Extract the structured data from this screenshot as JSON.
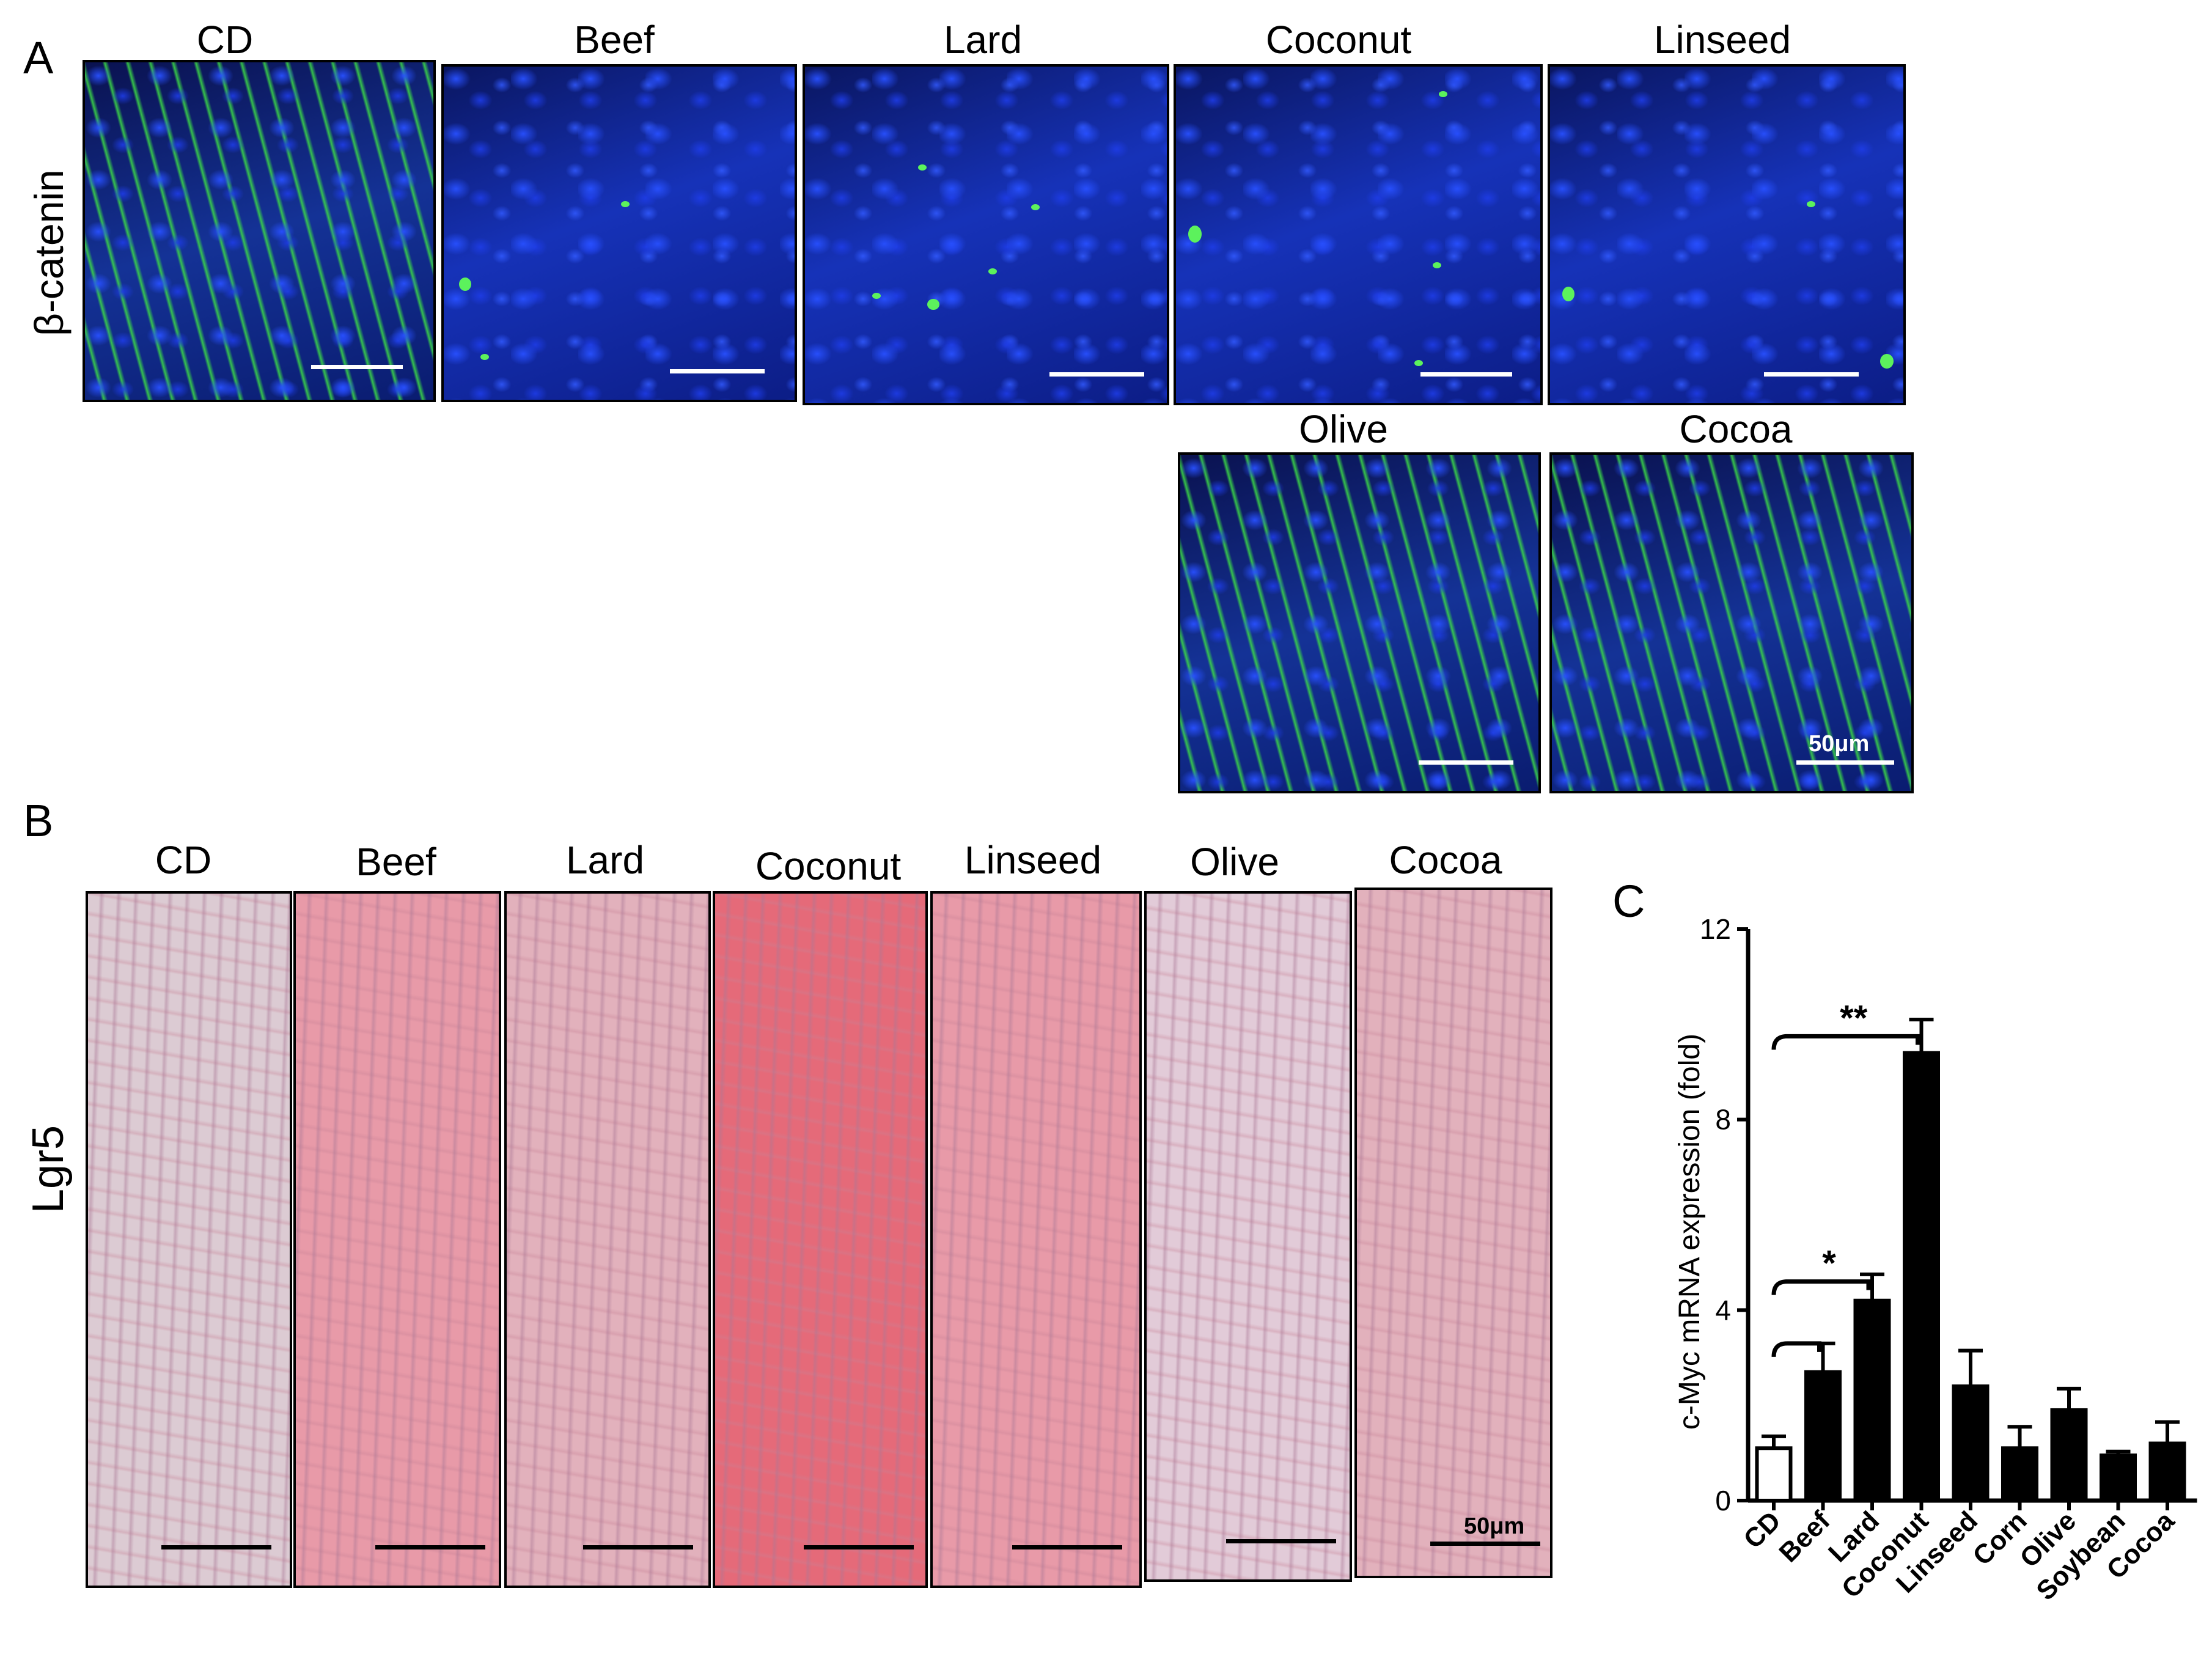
{
  "panel_a": {
    "letter": "A",
    "row_label": "β-catenin",
    "titles": [
      "CD",
      "Beef",
      "Lard",
      "Coconut",
      "Linseed",
      "Olive",
      "Cocoa"
    ],
    "scale_text": "50μm"
  },
  "panel_b": {
    "letter": "B",
    "row_label": "Lgr5",
    "titles": [
      "CD",
      "Beef",
      "Lard",
      "Coconut",
      "Linseed",
      "Olive",
      "Cocoa"
    ],
    "scale_text": "50μm"
  },
  "panel_c": {
    "letter": "C"
  },
  "chart_data": {
    "type": "bar",
    "categories": [
      "CD",
      "Beef",
      "Lard",
      "Coconut",
      "Linseed",
      "Corn",
      "Olive",
      "Soybean",
      "Cocoa"
    ],
    "values": [
      1.1,
      2.7,
      4.2,
      9.4,
      2.4,
      1.1,
      1.9,
      0.95,
      1.2
    ],
    "errors": [
      0.25,
      0.6,
      0.55,
      0.7,
      0.75,
      0.45,
      0.45,
      0.08,
      0.45
    ],
    "bar_fill": [
      "#ffffff",
      "#000000",
      "#000000",
      "#000000",
      "#000000",
      "#000000",
      "#000000",
      "#000000",
      "#000000"
    ],
    "ylabel": "c-Myc mRNA expression (fold)",
    "xlabel": "",
    "ylim": [
      0,
      12
    ],
    "yticks": [
      0,
      4,
      8,
      12
    ],
    "significance": [
      {
        "from": "CD",
        "to": "Coconut",
        "label": "**"
      },
      {
        "from": "CD",
        "to": "Lard",
        "label": "*"
      },
      {
        "from": "CD",
        "to": "Beef",
        "label": ""
      }
    ]
  }
}
